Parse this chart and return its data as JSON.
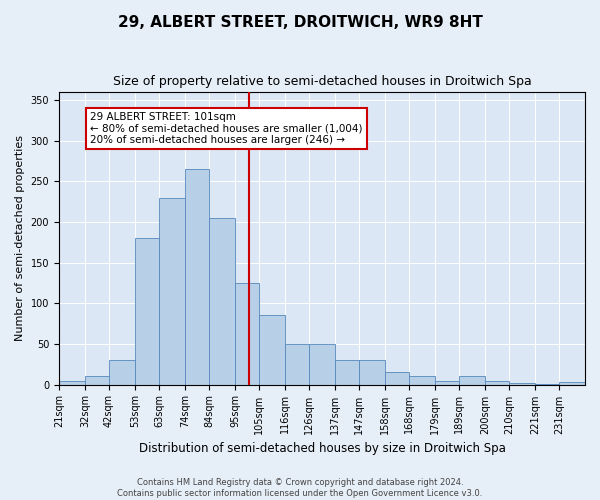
{
  "title": "29, ALBERT STREET, DROITWICH, WR9 8HT",
  "subtitle": "Size of property relative to semi-detached houses in Droitwich Spa",
  "xlabel": "Distribution of semi-detached houses by size in Droitwich Spa",
  "ylabel": "Number of semi-detached properties",
  "footer1": "Contains HM Land Registry data © Crown copyright and database right 2024.",
  "footer2": "Contains public sector information licensed under the Open Government Licence v3.0.",
  "annotation_title": "29 ALBERT STREET: 101sqm",
  "annotation_line1": "← 80% of semi-detached houses are smaller (1,004)",
  "annotation_line2": "20% of semi-detached houses are larger (246) →",
  "bar_color": "#b8cfe8",
  "bar_edge_color": "#5588bb",
  "vline_color": "#cc0000",
  "categories": [
    "21sqm",
    "32sqm",
    "42sqm",
    "53sqm",
    "63sqm",
    "74sqm",
    "84sqm",
    "95sqm",
    "105sqm",
    "116sqm",
    "126sqm",
    "137sqm",
    "147sqm",
    "158sqm",
    "168sqm",
    "179sqm",
    "189sqm",
    "200sqm",
    "210sqm",
    "221sqm",
    "231sqm"
  ],
  "bin_edges": [
    21,
    32,
    42,
    53,
    63,
    74,
    84,
    95,
    105,
    116,
    126,
    137,
    147,
    158,
    168,
    179,
    189,
    200,
    210,
    221,
    231,
    242
  ],
  "values": [
    5,
    10,
    30,
    180,
    230,
    265,
    205,
    125,
    85,
    50,
    50,
    30,
    30,
    15,
    10,
    5,
    10,
    5,
    2,
    1,
    3
  ],
  "vline_x_data": 101,
  "ylim": [
    0,
    360
  ],
  "yticks": [
    0,
    50,
    100,
    150,
    200,
    250,
    300,
    350
  ],
  "bg_color": "#e6eef7",
  "plot_bg": "#dbe7f4",
  "title_fontsize": 11,
  "subtitle_fontsize": 9,
  "ylabel_fontsize": 8,
  "xlabel_fontsize": 8.5,
  "tick_fontsize": 7,
  "footer_fontsize": 6,
  "annot_fontsize": 7.5
}
